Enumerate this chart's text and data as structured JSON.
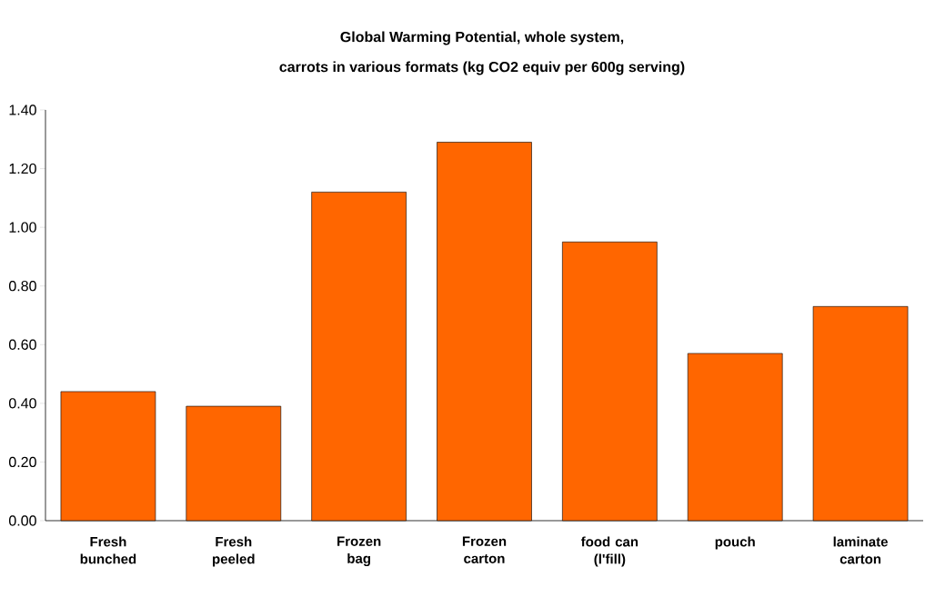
{
  "chart_data": {
    "type": "bar",
    "title": "Global Warming Potential, whole system,",
    "subtitle": "carrots in various formats (kg CO2 equiv per 600g serving)",
    "categories": [
      "Fresh bunched",
      "Fresh peeled",
      "Frozen bag",
      "Frozen carton",
      "food can (l'fill)",
      "pouch",
      "laminate carton"
    ],
    "values": [
      0.44,
      0.39,
      1.12,
      1.29,
      0.95,
      0.57,
      0.73
    ],
    "color": "#ff6600",
    "ylim": [
      0,
      1.4
    ],
    "yticks": [
      {
        "value": 0,
        "label": "0.00"
      },
      {
        "value": 0.2,
        "label": "0.20"
      },
      {
        "value": 0.4,
        "label": "0.40"
      },
      {
        "value": 0.6,
        "label": "0.60"
      },
      {
        "value": 0.8,
        "label": "0.80"
      },
      {
        "value": 1.0,
        "label": "1.00"
      },
      {
        "value": 1.2,
        "label": "1.20"
      },
      {
        "value": 1.4,
        "label": "1.40"
      }
    ]
  }
}
